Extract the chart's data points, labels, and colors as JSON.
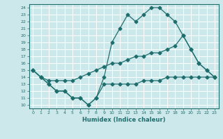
{
  "xlabel": "Humidex (Indice chaleur)",
  "bg_color": "#cde8ea",
  "line_color": "#1e6e6e",
  "grid_color": "#b0d8dc",
  "xlim": [
    -0.5,
    23.5
  ],
  "ylim": [
    9.5,
    24.5
  ],
  "yticks": [
    10,
    11,
    12,
    13,
    14,
    15,
    16,
    17,
    18,
    19,
    20,
    21,
    22,
    23,
    24
  ],
  "xticks": [
    0,
    1,
    2,
    3,
    4,
    5,
    6,
    7,
    8,
    9,
    10,
    11,
    12,
    13,
    14,
    15,
    16,
    17,
    18,
    19,
    20,
    21,
    22,
    23
  ],
  "s1y": [
    15,
    14,
    13,
    12,
    12,
    11,
    11,
    10,
    11,
    14,
    19,
    21,
    23,
    22,
    23,
    24,
    24,
    23,
    22,
    20,
    18,
    16,
    15,
    14
  ],
  "s2y": [
    15,
    14,
    13.5,
    13.5,
    13.5,
    13.5,
    14,
    14.5,
    15,
    15.5,
    16,
    16,
    16.5,
    17,
    17,
    17.5,
    17.5,
    18,
    18.5,
    20,
    18,
    16,
    15,
    14
  ],
  "s3y": [
    15,
    14,
    13,
    12,
    12,
    11,
    11,
    10,
    11,
    13,
    13,
    13,
    13,
    13,
    13.5,
    13.5,
    13.5,
    14,
    14,
    14,
    14,
    14,
    14,
    14
  ]
}
